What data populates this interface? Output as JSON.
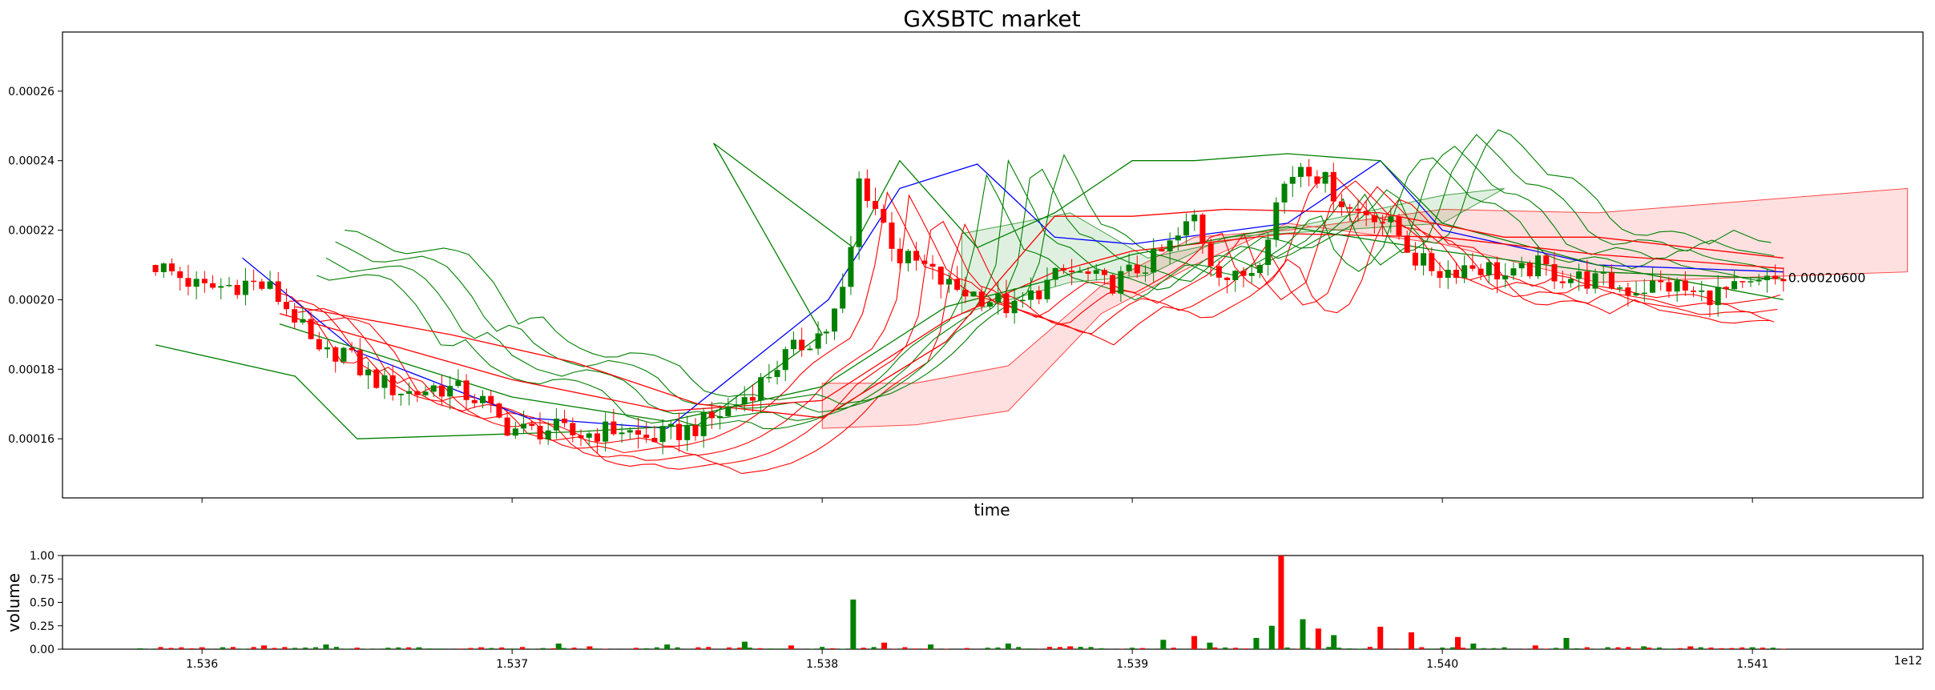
{
  "chart_data": [
    {
      "type": "candlestick",
      "title": "GXSBTC market",
      "xlabel": "time",
      "ylabel": "",
      "xlim": [
        1.53555,
        1.54155
      ],
      "ylim": [
        0.000143,
        0.000277
      ],
      "x_ticks": [
        1.536,
        1.537,
        1.538,
        1.539,
        1.54,
        1.541
      ],
      "y_ticks": [
        0.00016,
        0.00018,
        0.0002,
        0.00022,
        0.00024,
        0.00026
      ],
      "y_tick_labels": [
        "0.00016",
        "0.00018",
        "0.00020",
        "0.00022",
        "0.00024",
        "0.00026"
      ],
      "last_price_label": "0.00020600",
      "last_price": 0.000206,
      "grid": false,
      "up_color": "#008000",
      "down_color": "#ff0000",
      "price_path": [
        [
          1.53585,
          0.00021
        ],
        [
          1.53592,
          0.000207
        ],
        [
          1.536,
          0.000203
        ],
        [
          1.53608,
          0.000204
        ],
        [
          1.53615,
          0.000205
        ],
        [
          1.53622,
          0.000203
        ],
        [
          1.5363,
          0.000195
        ],
        [
          1.53638,
          0.000183
        ],
        [
          1.53645,
          0.000186
        ],
        [
          1.53652,
          0.000179
        ],
        [
          1.5366,
          0.000175
        ],
        [
          1.53668,
          0.000173
        ],
        [
          1.53675,
          0.000175
        ],
        [
          1.53682,
          0.000174
        ],
        [
          1.5369,
          0.000171
        ],
        [
          1.53697,
          0.000164
        ],
        [
          1.53705,
          0.000162
        ],
        [
          1.53713,
          0.000163
        ],
        [
          1.5372,
          0.000161
        ],
        [
          1.53728,
          0.000162
        ],
        [
          1.53735,
          0.000163
        ],
        [
          1.53742,
          0.00016
        ],
        [
          1.5375,
          0.000161
        ],
        [
          1.53758,
          0.000163
        ],
        [
          1.53765,
          0.000166
        ],
        [
          1.53772,
          0.00017
        ],
        [
          1.5378,
          0.000176
        ],
        [
          1.53787,
          0.000183
        ],
        [
          1.53795,
          0.000188
        ],
        [
          1.53802,
          0.000192
        ],
        [
          1.53808,
          0.000205
        ],
        [
          1.53812,
          0.000235
        ],
        [
          1.53818,
          0.000225
        ],
        [
          1.53825,
          0.000212
        ],
        [
          1.53832,
          0.00021
        ],
        [
          1.5384,
          0.000204
        ],
        [
          1.53848,
          0.000202
        ],
        [
          1.53855,
          0.0002
        ],
        [
          1.53862,
          0.000197
        ],
        [
          1.5387,
          0.000203
        ],
        [
          1.53878,
          0.000208
        ],
        [
          1.53885,
          0.000207
        ],
        [
          1.53892,
          0.000204
        ],
        [
          1.539,
          0.000208
        ],
        [
          1.53908,
          0.000212
        ],
        [
          1.53915,
          0.000218
        ],
        [
          1.5392,
          0.000224
        ],
        [
          1.53925,
          0.000212
        ],
        [
          1.53932,
          0.000205
        ],
        [
          1.5394,
          0.00021
        ],
        [
          1.53948,
          0.000232
        ],
        [
          1.53955,
          0.00024
        ],
        [
          1.53962,
          0.000234
        ],
        [
          1.5397,
          0.000226
        ],
        [
          1.53978,
          0.000225
        ],
        [
          1.53985,
          0.00022
        ],
        [
          1.53992,
          0.000211
        ],
        [
          1.54,
          0.000208
        ],
        [
          1.54008,
          0.00021
        ],
        [
          1.54015,
          0.000209
        ],
        [
          1.54022,
          0.000206
        ],
        [
          1.5403,
          0.00021
        ],
        [
          1.54038,
          0.000207
        ],
        [
          1.54045,
          0.000206
        ],
        [
          1.54052,
          0.000205
        ],
        [
          1.5406,
          0.000203
        ],
        [
          1.54068,
          0.000204
        ],
        [
          1.54075,
          0.000204
        ],
        [
          1.54082,
          0.000201
        ],
        [
          1.5409,
          0.000202
        ],
        [
          1.54098,
          0.000203
        ],
        [
          1.54105,
          0.000205
        ],
        [
          1.5411,
          0.000206
        ]
      ],
      "indicators": [
        {
          "color": "#0000ff",
          "path": [
            [
              1.53613,
              0.000212
            ],
            [
              1.5365,
              0.000185
            ],
            [
              1.53705,
              0.000166
            ],
            [
              1.5375,
              0.000163
            ],
            [
              1.53802,
              0.0002
            ],
            [
              1.53825,
              0.000232
            ],
            [
              1.5385,
              0.000239
            ],
            [
              1.53875,
              0.000218
            ],
            [
              1.539,
              0.000216
            ],
            [
              1.5395,
              0.000222
            ],
            [
              1.5398,
              0.00024
            ],
            [
              1.54,
              0.00022
            ],
            [
              1.5405,
              0.00021
            ],
            [
              1.5411,
              0.000208
            ]
          ]
        },
        {
          "color": "#008000",
          "path": [
            [
              1.53585,
              0.000187
            ],
            [
              1.5363,
              0.000178
            ],
            [
              1.5365,
              0.00016
            ],
            [
              1.5372,
              0.000162
            ],
            [
              1.5376,
              0.000164
            ],
            [
              1.538,
              0.00019
            ],
            [
              1.53765,
              0.000245
            ],
            [
              1.5381,
              0.000215
            ],
            [
              1.53825,
              0.00024
            ],
            [
              1.5385,
              0.000215
            ],
            [
              1.53875,
              0.000225
            ],
            [
              1.539,
              0.00024
            ],
            [
              1.5392,
              0.00024
            ],
            [
              1.5395,
              0.000242
            ],
            [
              1.5398,
              0.00024
            ],
            [
              1.54,
              0.000222
            ],
            [
              1.5405,
              0.00021
            ],
            [
              1.5411,
              0.0002
            ]
          ]
        },
        {
          "color": "#ff0000",
          "path": [
            [
              1.5363,
              0.000198
            ],
            [
              1.5368,
              0.00019
            ],
            [
              1.5372,
              0.000182
            ],
            [
              1.5376,
              0.00017
            ],
            [
              1.538,
              0.000166
            ],
            [
              1.5384,
              0.000188
            ],
            [
              1.53875,
              0.000224
            ],
            [
              1.539,
              0.000224
            ],
            [
              1.5393,
              0.000226
            ],
            [
              1.5398,
              0.000225
            ],
            [
              1.5402,
              0.000218
            ],
            [
              1.5405,
              0.000218
            ],
            [
              1.5411,
              0.000212
            ]
          ]
        },
        {
          "color": "#ff0000",
          "path": [
            [
              1.53625,
              0.000196
            ],
            [
              1.537,
              0.000177
            ],
            [
              1.5375,
              0.000168
            ],
            [
              1.538,
              0.000171
            ],
            [
              1.5384,
              0.000194
            ],
            [
              1.53875,
              0.000208
            ],
            [
              1.539,
              0.000214
            ],
            [
              1.5395,
              0.000219
            ],
            [
              1.54,
              0.000218
            ],
            [
              1.5405,
              0.000213
            ],
            [
              1.5411,
              0.000209
            ]
          ]
        },
        {
          "color": "#008000",
          "path": [
            [
              1.53625,
              0.000193
            ],
            [
              1.537,
              0.000172
            ],
            [
              1.5375,
              0.000165
            ],
            [
              1.538,
              0.000175
            ],
            [
              1.5384,
              0.000198
            ],
            [
              1.53875,
              0.000206
            ],
            [
              1.539,
              0.000213
            ],
            [
              1.5395,
              0.000221
            ],
            [
              1.54,
              0.000214
            ],
            [
              1.5405,
              0.000208
            ],
            [
              1.5411,
              0.000206
            ]
          ]
        }
      ],
      "cloud": [
        {
          "color": "#ff0000",
          "points": [
            [
              1.538,
              0.000176
            ],
            [
              1.5383,
              0.000176
            ],
            [
              1.5386,
              0.000181
            ],
            [
              1.5389,
              0.000204
            ],
            [
              1.5392,
              0.000218
            ],
            [
              1.5395,
              0.00022
            ],
            [
              1.54,
              0.000226
            ],
            [
              1.5405,
              0.000225
            ],
            [
              1.5415,
              0.000232
            ],
            [
              1.5415,
              0.000208
            ],
            [
              1.5405,
              0.000205
            ],
            [
              1.54,
              0.000216
            ],
            [
              1.5395,
              0.000222
            ],
            [
              1.5392,
              0.00021
            ],
            [
              1.5389,
              0.000196
            ],
            [
              1.5386,
              0.000168
            ],
            [
              1.5383,
              0.000164
            ],
            [
              1.538,
              0.000163
            ]
          ]
        },
        {
          "color": "#008000",
          "points": [
            [
              1.53845,
              0.000219
            ],
            [
              1.5388,
              0.000225
            ],
            [
              1.53905,
              0.000212
            ],
            [
              1.54,
              0.00023
            ],
            [
              1.5402,
              0.000232
            ],
            [
              1.54,
              0.000222
            ],
            [
              1.5393,
              0.000218
            ],
            [
              1.53905,
              0.000207
            ],
            [
              1.5388,
              0.000205
            ],
            [
              1.53845,
              0.000196
            ]
          ]
        }
      ]
    },
    {
      "type": "bar",
      "ylabel": "volume",
      "xlim": [
        1.53555,
        1.54155
      ],
      "ylim": [
        0,
        1
      ],
      "x_ticks": [
        1.536,
        1.537,
        1.538,
        1.539,
        1.54,
        1.541
      ],
      "x_tick_labels": [
        "1.536",
        "1.537",
        "1.538",
        "1.539",
        "1.540",
        "1.541"
      ],
      "y_ticks": [
        0,
        0.25,
        0.5,
        0.75,
        1
      ],
      "y_tick_labels": [
        "0.00",
        "0.25",
        "0.50",
        "0.75",
        "1.00"
      ],
      "offset_label": "1e12",
      "bars": [
        {
          "x": 1.5358,
          "v": 0.01,
          "up": true
        },
        {
          "x": 1.536,
          "v": 0.02,
          "up": false
        },
        {
          "x": 1.5362,
          "v": 0.04,
          "up": false
        },
        {
          "x": 1.5364,
          "v": 0.05,
          "up": true
        },
        {
          "x": 1.5367,
          "v": 0.02,
          "up": true
        },
        {
          "x": 1.5369,
          "v": 0.02,
          "up": false
        },
        {
          "x": 1.53715,
          "v": 0.06,
          "up": true
        },
        {
          "x": 1.53725,
          "v": 0.03,
          "up": false
        },
        {
          "x": 1.5375,
          "v": 0.05,
          "up": true
        },
        {
          "x": 1.53775,
          "v": 0.08,
          "up": true
        },
        {
          "x": 1.5379,
          "v": 0.04,
          "up": false
        },
        {
          "x": 1.5381,
          "v": 0.53,
          "up": true
        },
        {
          "x": 1.5382,
          "v": 0.07,
          "up": false
        },
        {
          "x": 1.53835,
          "v": 0.05,
          "up": true
        },
        {
          "x": 1.5386,
          "v": 0.06,
          "up": true
        },
        {
          "x": 1.5388,
          "v": 0.03,
          "up": false
        },
        {
          "x": 1.5391,
          "v": 0.1,
          "up": true
        },
        {
          "x": 1.5392,
          "v": 0.14,
          "up": false
        },
        {
          "x": 1.53925,
          "v": 0.07,
          "up": true
        },
        {
          "x": 1.5394,
          "v": 0.12,
          "up": true
        },
        {
          "x": 1.53945,
          "v": 0.25,
          "up": true
        },
        {
          "x": 1.53948,
          "v": 1,
          "up": false
        },
        {
          "x": 1.53955,
          "v": 0.32,
          "up": true
        },
        {
          "x": 1.5396,
          "v": 0.22,
          "up": false
        },
        {
          "x": 1.53965,
          "v": 0.15,
          "up": true
        },
        {
          "x": 1.5398,
          "v": 0.24,
          "up": false
        },
        {
          "x": 1.5399,
          "v": 0.18,
          "up": false
        },
        {
          "x": 1.54005,
          "v": 0.13,
          "up": false
        },
        {
          "x": 1.5401,
          "v": 0.06,
          "up": true
        },
        {
          "x": 1.5403,
          "v": 0.04,
          "up": false
        },
        {
          "x": 1.5404,
          "v": 0.12,
          "up": true
        },
        {
          "x": 1.54065,
          "v": 0.03,
          "up": true
        },
        {
          "x": 1.5408,
          "v": 0.03,
          "up": false
        },
        {
          "x": 1.541,
          "v": 0.02,
          "up": true
        }
      ]
    }
  ]
}
